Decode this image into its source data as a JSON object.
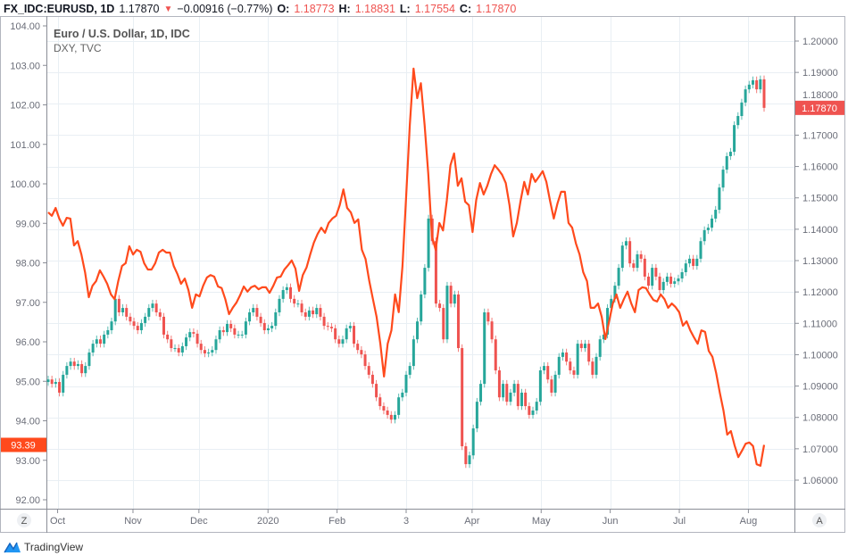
{
  "header": {
    "symbol": "FX_IDC:EURUSD, 1D",
    "last": "1.17870",
    "direction_icon": "triangle-down",
    "change": "−0.00916 (−0.77%)",
    "open_label": "O:",
    "open": "1.18773",
    "high_label": "H:",
    "high": "1.18831",
    "low_label": "L:",
    "low": "1.17554",
    "close_label": "C:",
    "close": "1.17870"
  },
  "legend": {
    "main": "Euro / U.S. Dollar, 1D, IDC",
    "overlay": "DXY, TVC"
  },
  "buttons": {
    "left_scale": "Z",
    "right_scale": "A"
  },
  "branding": "TradingView",
  "colors": {
    "up": "#26a69a",
    "down": "#ef5350",
    "dxy": "#ff4a1c",
    "grid": "#e9eff4"
  },
  "chart_data": {
    "type": "line+candlestick",
    "title": "Euro / U.S. Dollar, 1D, IDC",
    "x_range_days": [
      0,
      228
    ],
    "x_ticks": [
      {
        "label": "Oct",
        "day": 3
      },
      {
        "label": "Nov",
        "day": 27
      },
      {
        "label": "Dec",
        "day": 48
      },
      {
        "label": "2020",
        "day": 70
      },
      {
        "label": "Feb",
        "day": 92
      },
      {
        "label": "3",
        "day": 114
      },
      {
        "label": "Apr",
        "day": 135
      },
      {
        "label": "May",
        "day": 157
      },
      {
        "label": "Jun",
        "day": 179
      },
      {
        "label": "Jul",
        "day": 201
      },
      {
        "label": "Aug",
        "day": 223
      }
    ],
    "left_axis": {
      "series": "DXY",
      "range": [
        92,
        104
      ],
      "ticks": [
        "92.00",
        "93.00",
        "94.00",
        "95.00",
        "96.00",
        "97.00",
        "98.00",
        "99.00",
        "100.00",
        "101.00",
        "102.00",
        "103.00",
        "104.00"
      ],
      "last_label": "93.39",
      "last_value": 93.39
    },
    "right_axis": {
      "series": "EURUSD",
      "range": [
        1.06,
        1.2
      ],
      "ticks": [
        "1.06000",
        "1.07000",
        "1.08000",
        "1.09000",
        "1.10000",
        "1.11000",
        "1.12000",
        "1.13000",
        "1.14000",
        "1.15000",
        "1.16000",
        "1.17000",
        "1.18000",
        "1.19000",
        "1.20000"
      ],
      "last_label": "1.17870",
      "last_value": 1.1787
    },
    "series": [
      {
        "name": "DXY, TVC",
        "kind": "line",
        "values": [
          99.28,
          99.19,
          99.39,
          99.12,
          98.94,
          99.14,
          99.12,
          98.44,
          98.55,
          98.21,
          97.76,
          97.13,
          97.42,
          97.54,
          97.81,
          97.65,
          97.47,
          97.2,
          97.08,
          97.54,
          97.92,
          97.99,
          98.42,
          98.21,
          98.33,
          98.28,
          97.99,
          97.83,
          97.83,
          97.99,
          98.26,
          98.33,
          98.26,
          98.26,
          97.92,
          97.72,
          97.47,
          97.6,
          97.31,
          96.86,
          97.2,
          97.15,
          97.42,
          97.63,
          97.69,
          97.65,
          97.4,
          97.36,
          97.08,
          96.7,
          96.86,
          96.99,
          97.18,
          97.4,
          97.27,
          97.38,
          97.42,
          97.33,
          97.38,
          97.38,
          97.24,
          97.42,
          97.63,
          97.65,
          97.83,
          97.94,
          98.06,
          97.85,
          97.29,
          97.69,
          97.88,
          98.21,
          98.51,
          98.73,
          98.89,
          98.76,
          99.01,
          99.12,
          99.19,
          99.46,
          99.86,
          99.39,
          99.28,
          99.01,
          99.1,
          98.33,
          98.1,
          97.54,
          97.08,
          96.63,
          95.95,
          95.12,
          95.95,
          96.29,
          97.2,
          96.75,
          97.92,
          99.68,
          101.49,
          102.92,
          102.17,
          102.55,
          101.49,
          100.25,
          98.67,
          98.33,
          99.01,
          98.82,
          99.57,
          100.47,
          100.77,
          99.95,
          100.14,
          99.55,
          99.46,
          98.78,
          99.59,
          100.02,
          99.73,
          99.95,
          100.25,
          100.47,
          100.36,
          100.23,
          100.02,
          99.46,
          98.67,
          99.01,
          99.57,
          100.05,
          99.73,
          100.25,
          100.05,
          100.18,
          100.32,
          100.05,
          99.57,
          99.12,
          99.5,
          99.8,
          99.8,
          99.01,
          98.89,
          98.49,
          98.21,
          97.76,
          97.54,
          96.86,
          96.86,
          96.97,
          96.63,
          96.07,
          96.52,
          96.97,
          97.2,
          96.86,
          97.08,
          97.27,
          96.97,
          96.75,
          97.31,
          97.38,
          97.36,
          97.2,
          97.06,
          97.02,
          97.2,
          97.08,
          96.86,
          96.97,
          96.88,
          96.75,
          96.41,
          96.52,
          96.29,
          96.11,
          95.95,
          96.29,
          96.25,
          95.77,
          95.62,
          95.21,
          94.71,
          94.26,
          93.65,
          93.74,
          93.38,
          93.08,
          93.24,
          93.42,
          93.45,
          93.36,
          92.9,
          92.86,
          93.39
        ]
      },
      {
        "name": "Euro / U.S. Dollar",
        "kind": "candlestick",
        "closes": [
          1.0921,
          1.0907,
          1.0913,
          1.0879,
          1.0936,
          1.0964,
          1.0978,
          1.0964,
          1.097,
          1.0941,
          1.0964,
          1.1007,
          1.1035,
          1.1049,
          1.1035,
          1.1064,
          1.1078,
          1.1106,
          1.1178,
          1.1135,
          1.1149,
          1.1121,
          1.1106,
          1.1092,
          1.1078,
          1.1101,
          1.1121,
          1.1149,
          1.1163,
          1.1135,
          1.1121,
          1.1064,
          1.1049,
          1.1021,
          1.1021,
          1.1007,
          1.1027,
          1.1055,
          1.1072,
          1.1067,
          1.1035,
          1.1015,
          1.1004,
          1.1007,
          1.1015,
          1.1049,
          1.1078,
          1.1072,
          1.1098,
          1.1084,
          1.1064,
          1.1064,
          1.1064,
          1.1106,
          1.1135,
          1.1149,
          1.1121,
          1.1101,
          1.1078,
          1.1084,
          1.1092,
          1.1135,
          1.1178,
          1.1206,
          1.1215,
          1.1178,
          1.1163,
          1.1163,
          1.1135,
          1.1121,
          1.1141,
          1.1129,
          1.1149,
          1.1121,
          1.1092,
          1.1089,
          1.1084,
          1.1049,
          1.1035,
          1.1049,
          1.1084,
          1.1092,
          1.1035,
          1.1015,
          1.1001,
          1.0964,
          1.0936,
          1.0907,
          1.0864,
          1.0836,
          1.0822,
          1.0808,
          1.0793,
          1.0808,
          1.0864,
          1.0879,
          1.0936,
          1.0964,
          1.1049,
          1.1106,
          1.1192,
          1.1277,
          1.1434,
          1.1362,
          1.1163,
          1.1149,
          1.1049,
          1.122,
          1.1163,
          1.1192,
          1.1021,
          1.0708,
          1.0651,
          1.0679,
          1.0765,
          1.085,
          1.0907,
          1.1135,
          1.1106,
          1.1049,
          1.095,
          1.0864,
          1.0907,
          1.085,
          1.0879,
          1.0907,
          1.0836,
          1.0879,
          1.0836,
          1.0808,
          1.0822,
          1.085,
          1.095,
          1.0964,
          1.0921,
          1.0879,
          1.0936,
          1.0993,
          1.1007,
          1.0978,
          1.095,
          1.0936,
          1.1035,
          1.1021,
          1.1035,
          1.0978,
          1.0936,
          1.0993,
          1.1049,
          1.1064,
          1.1149,
          1.1178,
          1.122,
          1.1277,
          1.1348,
          1.1362,
          1.1291,
          1.1277,
          1.132,
          1.1306,
          1.1249,
          1.122,
          1.1277,
          1.1249,
          1.1206,
          1.1232,
          1.1249,
          1.1226,
          1.1234,
          1.1243,
          1.1263,
          1.1291,
          1.1306,
          1.1283,
          1.1306,
          1.1362,
          1.1397,
          1.1405,
          1.1434,
          1.1462,
          1.1533,
          1.159,
          1.1633,
          1.1647,
          1.1732,
          1.1761,
          1.1804,
          1.1846,
          1.1861,
          1.1875,
          1.1846,
          1.1878,
          1.1787
        ]
      }
    ],
    "grid": true,
    "legend_position": "top-left"
  }
}
